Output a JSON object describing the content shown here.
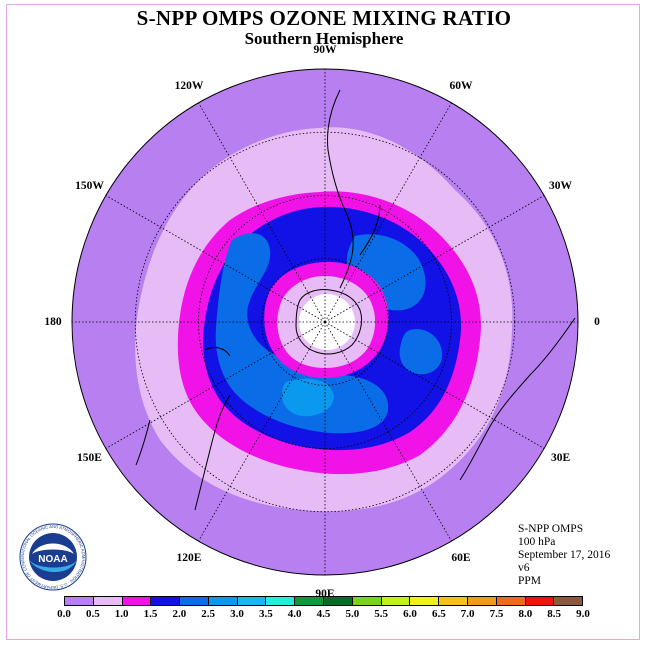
{
  "title": "S-NPP OMPS OZONE MIXING RATIO",
  "subtitle": "Southern Hemisphere",
  "longitude_labels": [
    {
      "text": "90W",
      "lon": -90
    },
    {
      "text": "60W",
      "lon": -60
    },
    {
      "text": "30W",
      "lon": -30
    },
    {
      "text": "0",
      "lon": 0
    },
    {
      "text": "30E",
      "lon": 30
    },
    {
      "text": "60E",
      "lon": 60
    },
    {
      "text": "90E",
      "lon": 90
    },
    {
      "text": "120E",
      "lon": 120
    },
    {
      "text": "150E",
      "lon": 150
    },
    {
      "text": "180",
      "lon": 180
    },
    {
      "text": "150W",
      "lon": -150
    },
    {
      "text": "120W",
      "lon": -120
    }
  ],
  "info": {
    "instrument": "S-NPP OMPS",
    "level": "100 hPa",
    "date": "September 17, 2016",
    "version": "v6",
    "units": "PPM"
  },
  "legend": {
    "ticks": [
      "0.0",
      "0.5",
      "1.0",
      "1.5",
      "2.0",
      "2.5",
      "3.0",
      "3.5",
      "4.0",
      "4.5",
      "5.0",
      "5.5",
      "6.0",
      "6.5",
      "7.0",
      "7.5",
      "8.0",
      "8.5",
      "9.0"
    ],
    "colors": [
      "#b77ff0",
      "#e6bbf6",
      "#f012e6",
      "#1212e6",
      "#0a6ce6",
      "#0a99ee",
      "#1ab6f0",
      "#20f0d8",
      "#0a9a3c",
      "#0a6a28",
      "#7ad21a",
      "#c2f01a",
      "#f0f01a",
      "#f0c21a",
      "#f09a1a",
      "#f06a1a",
      "#f01212",
      "#8a5a3c"
    ],
    "units": "PPM"
  },
  "logo": {
    "text": "NOAA",
    "ring_text": "NATIONAL OCEANIC AND ATMOSPHERIC ADMINISTRATION · U.S. DEPARTMENT OF COMMERCE"
  }
}
